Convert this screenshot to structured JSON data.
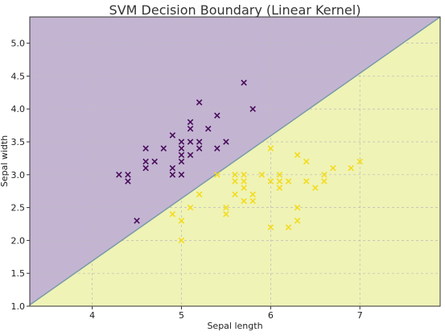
{
  "chart_data": {
    "type": "scatter",
    "title": "SVM Decision Boundary (Linear Kernel)",
    "xlabel": "Sepal length",
    "ylabel": "Sepal width",
    "xlim": [
      3.3,
      7.9
    ],
    "ylim": [
      1.0,
      5.4
    ],
    "xticks": [
      4,
      5,
      6,
      7
    ],
    "yticks": [
      1.0,
      1.5,
      2.0,
      2.5,
      3.0,
      3.5,
      4.0,
      4.5,
      5.0
    ],
    "grid": true,
    "marker": "x",
    "decision_boundary": {
      "points": [
        [
          3.3,
          1.02
        ],
        [
          7.9,
          5.4
        ]
      ]
    },
    "regions": [
      {
        "name": "upper",
        "color": "#c3b5d2"
      },
      {
        "name": "lower",
        "color": "#eff3b6"
      }
    ],
    "boundary_color": "#7a9aa8",
    "series": [
      {
        "color": "#4a0c5c",
        "points": [
          [
            4.3,
            3.0
          ],
          [
            4.4,
            3.0
          ],
          [
            4.4,
            2.9
          ],
          [
            4.5,
            2.3
          ],
          [
            4.6,
            3.4
          ],
          [
            4.6,
            3.2
          ],
          [
            4.6,
            3.1
          ],
          [
            4.7,
            3.2
          ],
          [
            4.8,
            3.4
          ],
          [
            4.9,
            3.6
          ],
          [
            4.9,
            3.1
          ],
          [
            4.9,
            3.0
          ],
          [
            5.0,
            3.5
          ],
          [
            5.0,
            3.4
          ],
          [
            5.0,
            3.3
          ],
          [
            5.0,
            3.2
          ],
          [
            5.0,
            3.0
          ],
          [
            5.1,
            3.8
          ],
          [
            5.1,
            3.7
          ],
          [
            5.1,
            3.5
          ],
          [
            5.1,
            3.3
          ],
          [
            5.2,
            4.1
          ],
          [
            5.2,
            3.5
          ],
          [
            5.2,
            3.4
          ],
          [
            5.3,
            3.7
          ],
          [
            5.4,
            3.9
          ],
          [
            5.4,
            3.4
          ],
          [
            5.5,
            3.5
          ],
          [
            5.7,
            4.4
          ],
          [
            5.8,
            4.0
          ]
        ]
      },
      {
        "color": "#f3dc1e",
        "points": [
          [
            4.9,
            2.4
          ],
          [
            5.0,
            2.3
          ],
          [
            5.0,
            2.0
          ],
          [
            5.1,
            2.5
          ],
          [
            5.2,
            2.7
          ],
          [
            5.4,
            3.0
          ],
          [
            5.5,
            2.5
          ],
          [
            5.5,
            2.4
          ],
          [
            5.6,
            3.0
          ],
          [
            5.6,
            2.9
          ],
          [
            5.6,
            2.7
          ],
          [
            5.7,
            3.0
          ],
          [
            5.7,
            2.9
          ],
          [
            5.7,
            2.8
          ],
          [
            5.7,
            2.6
          ],
          [
            5.8,
            2.7
          ],
          [
            5.8,
            2.6
          ],
          [
            5.9,
            3.0
          ],
          [
            6.0,
            3.4
          ],
          [
            6.0,
            2.9
          ],
          [
            6.0,
            2.2
          ],
          [
            6.1,
            3.0
          ],
          [
            6.1,
            2.9
          ],
          [
            6.1,
            2.8
          ],
          [
            6.2,
            2.9
          ],
          [
            6.2,
            2.2
          ],
          [
            6.3,
            3.3
          ],
          [
            6.3,
            2.5
          ],
          [
            6.3,
            2.3
          ],
          [
            6.4,
            3.2
          ],
          [
            6.4,
            2.9
          ],
          [
            6.5,
            2.8
          ],
          [
            6.6,
            3.0
          ],
          [
            6.6,
            2.9
          ],
          [
            6.7,
            3.1
          ],
          [
            6.9,
            3.1
          ],
          [
            7.0,
            3.2
          ]
        ]
      }
    ]
  }
}
